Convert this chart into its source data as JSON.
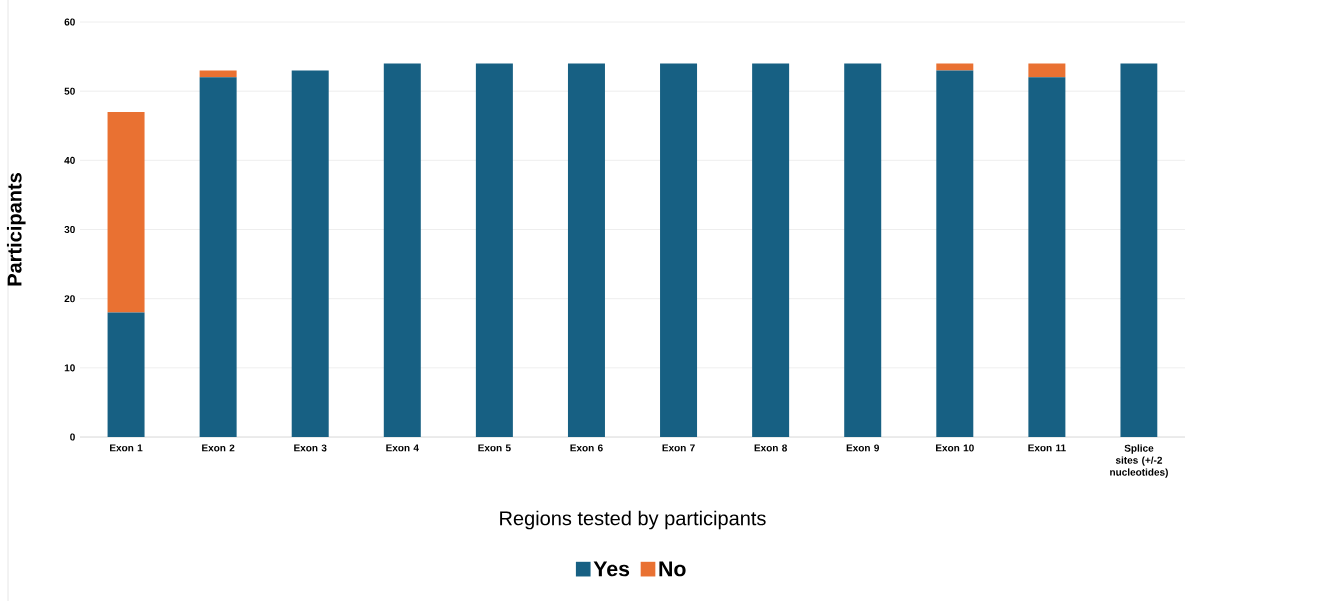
{
  "chart_data": {
    "type": "bar",
    "stacked": true,
    "ylabel": "Participants",
    "xlabel": "Regions tested by participants",
    "categories": [
      "Exon 1",
      "Exon 2",
      "Exon 3",
      "Exon 4",
      "Exon 5",
      "Exon 6",
      "Exon 7",
      "Exon 8",
      "Exon 9",
      "Exon 10",
      "Exon 11",
      "Splice sites (+/-2 nucleotides)"
    ],
    "series": [
      {
        "name": "Yes",
        "color": "#176083",
        "values": [
          18,
          52,
          53,
          54,
          54,
          54,
          54,
          54,
          54,
          53,
          52,
          54
        ]
      },
      {
        "name": "No",
        "color": "#e97132",
        "values": [
          29,
          1,
          0,
          0,
          0,
          0,
          0,
          0,
          0,
          1,
          2,
          0
        ]
      }
    ],
    "ylim": [
      0,
      60
    ],
    "yticks": [
      0,
      10,
      20,
      30,
      40,
      50,
      60
    ],
    "grid": "y",
    "legend": "bottom"
  }
}
